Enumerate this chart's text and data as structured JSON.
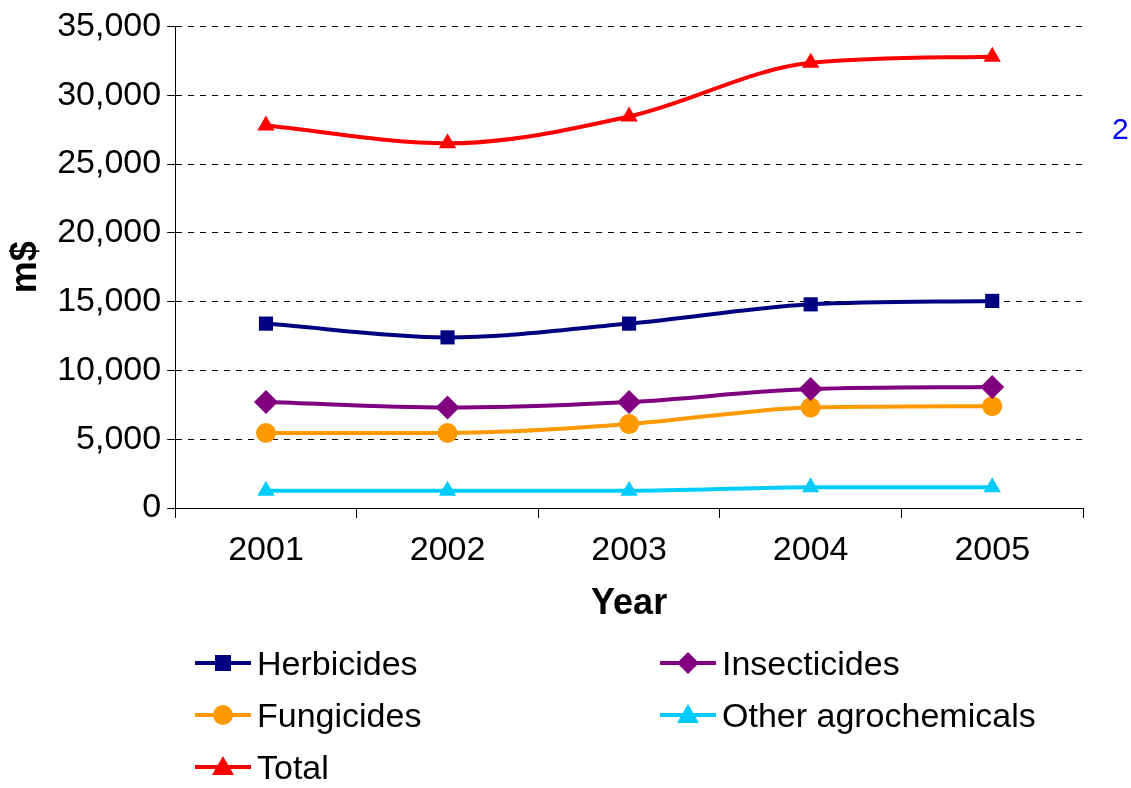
{
  "chart_data": {
    "type": "line",
    "xlabel": "Year",
    "ylabel": "m$",
    "categories": [
      "2001",
      "2002",
      "2003",
      "2004",
      "2005"
    ],
    "series": [
      {
        "name": "Herbicides",
        "color": "#000080",
        "marker": "square",
        "values": [
          13400,
          12400,
          13400,
          14800,
          15050
        ]
      },
      {
        "name": "Insecticides",
        "color": "#800080",
        "marker": "diamond",
        "values": [
          7700,
          7300,
          7700,
          8650,
          8800
        ]
      },
      {
        "name": "Fungicides",
        "color": "#ff9900",
        "marker": "circle",
        "values": [
          5450,
          5450,
          6100,
          7300,
          7400
        ]
      },
      {
        "name": "Other agrochemicals",
        "color": "#00ccff",
        "marker": "triangle",
        "values": [
          1250,
          1250,
          1250,
          1500,
          1500
        ]
      },
      {
        "name": "Total",
        "color": "#ff0000",
        "marker": "triangle",
        "values": [
          27800,
          26500,
          28450,
          32350,
          32800
        ]
      }
    ],
    "ylim": [
      0,
      35000
    ],
    "yticks": [
      0,
      {
        "value": 5000,
        "label": "5,000"
      },
      {
        "value": 10000,
        "label": "10,000"
      },
      {
        "value": 15000,
        "label": "15,000"
      },
      {
        "value": 20000,
        "label": "20,000"
      },
      {
        "value": 25000,
        "label": "25,000"
      },
      {
        "value": 30000,
        "label": "30,000"
      },
      {
        "value": 35000,
        "label": "35,000"
      }
    ],
    "grid": "y",
    "legend": "bottom",
    "line_style": "solid",
    "annotations": [
      "2"
    ]
  }
}
